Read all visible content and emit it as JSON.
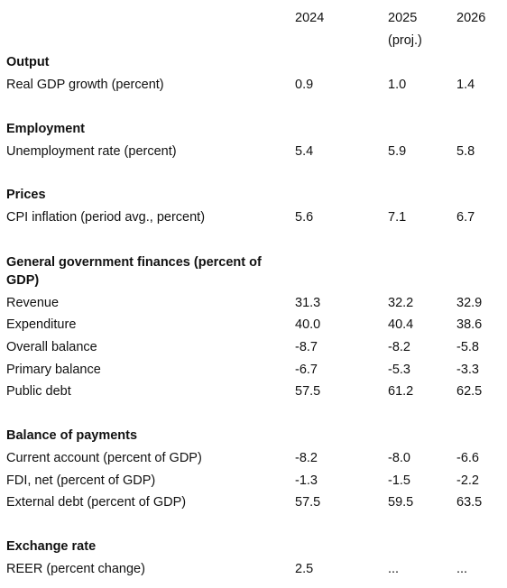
{
  "header": {
    "col_2024": "2024",
    "col_2025": "2025",
    "col_2025_note": "(proj.)",
    "col_2026": "2026"
  },
  "sections": {
    "output": {
      "title": "Output",
      "rows": [
        {
          "label": "Real GDP growth (percent)",
          "v2024": "0.9",
          "v2025": "1.0",
          "v2026": "1.4"
        }
      ]
    },
    "employment": {
      "title": "Employment",
      "rows": [
        {
          "label": "Unemployment rate (percent)",
          "v2024": "5.4",
          "v2025": "5.9",
          "v2026": "5.8"
        }
      ]
    },
    "prices": {
      "title": "Prices",
      "rows": [
        {
          "label": "CPI inflation (period avg., percent)",
          "v2024": "5.6",
          "v2025": "7.1",
          "v2026": "6.7"
        }
      ]
    },
    "government": {
      "title": "General government finances (percent of GDP)",
      "rows": [
        {
          "label": "Revenue",
          "v2024": "31.3",
          "v2025": "32.2",
          "v2026": "32.9"
        },
        {
          "label": "Expenditure",
          "v2024": "40.0",
          "v2025": "40.4",
          "v2026": "38.6"
        },
        {
          "label": "Overall balance",
          "v2024": "-8.7",
          "v2025": "-8.2",
          "v2026": "-5.8"
        },
        {
          "label": "Primary balance",
          "v2024": "-6.7",
          "v2025": "-5.3",
          "v2026": "-3.3"
        },
        {
          "label": "Public debt",
          "v2024": "57.5",
          "v2025": "61.2",
          "v2026": "62.5"
        }
      ]
    },
    "bop": {
      "title": "Balance of payments",
      "rows": [
        {
          "label": "Current account (percent of GDP)",
          "v2024": "-8.2",
          "v2025": "-8.0",
          "v2026": "-6.6"
        },
        {
          "label": "FDI, net (percent of GDP)",
          "v2024": "-1.3",
          "v2025": "-1.5",
          "v2026": "-2.2"
        },
        {
          "label": "External debt (percent of GDP)",
          "v2024": "57.5",
          "v2025": "59.5",
          "v2026": "63.5"
        }
      ]
    },
    "exchange": {
      "title": "Exchange rate",
      "rows": [
        {
          "label": "REER (percent change)",
          "v2024": "2.5",
          "v2025": "...",
          "v2026": "..."
        }
      ]
    }
  }
}
